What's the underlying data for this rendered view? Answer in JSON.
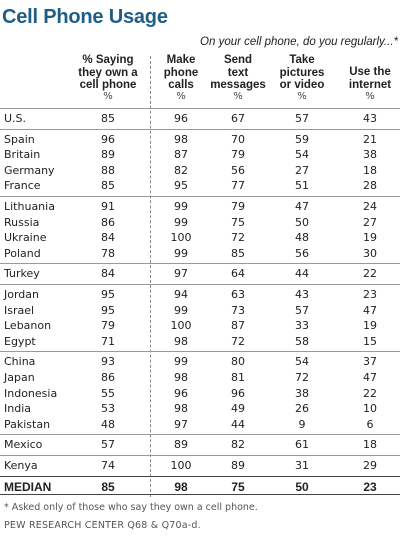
{
  "title": "Cell Phone Usage",
  "subtitle": "On your cell phone, do you regularly...*",
  "chart_data": {
    "type": "table",
    "columns": [
      {
        "lines": [
          "% Saying",
          "they own a",
          "cell phone"
        ],
        "unit": "%"
      },
      {
        "lines": [
          "Make",
          "phone",
          "calls"
        ],
        "unit": "%"
      },
      {
        "lines": [
          "Send",
          "text",
          "messages"
        ],
        "unit": "%"
      },
      {
        "lines": [
          "Take",
          "pictures",
          "or video"
        ],
        "unit": "%"
      },
      {
        "lines": [
          "Use the",
          "internet"
        ],
        "unit": "%"
      }
    ],
    "groups": [
      [
        [
          "U.S.",
          "85",
          "96",
          "67",
          "57",
          "43"
        ]
      ],
      [
        [
          "Spain",
          "96",
          "98",
          "70",
          "59",
          "21"
        ],
        [
          "Britain",
          "89",
          "87",
          "79",
          "54",
          "38"
        ],
        [
          "Germany",
          "88",
          "82",
          "56",
          "27",
          "18"
        ],
        [
          "France",
          "85",
          "95",
          "77",
          "51",
          "28"
        ]
      ],
      [
        [
          "Lithuania",
          "91",
          "99",
          "79",
          "47",
          "24"
        ],
        [
          "Russia",
          "86",
          "99",
          "75",
          "50",
          "27"
        ],
        [
          "Ukraine",
          "84",
          "100",
          "72",
          "48",
          "19"
        ],
        [
          "Poland",
          "78",
          "99",
          "85",
          "56",
          "30"
        ]
      ],
      [
        [
          "Turkey",
          "84",
          "97",
          "64",
          "44",
          "22"
        ]
      ],
      [
        [
          "Jordan",
          "95",
          "94",
          "63",
          "43",
          "23"
        ],
        [
          "Israel",
          "95",
          "99",
          "73",
          "57",
          "47"
        ],
        [
          "Lebanon",
          "79",
          "100",
          "87",
          "33",
          "19"
        ],
        [
          "Egypt",
          "71",
          "98",
          "72",
          "58",
          "15"
        ]
      ],
      [
        [
          "China",
          "93",
          "99",
          "80",
          "54",
          "37"
        ],
        [
          "Japan",
          "86",
          "98",
          "81",
          "72",
          "47"
        ],
        [
          "Indonesia",
          "55",
          "96",
          "96",
          "38",
          "22"
        ],
        [
          "India",
          "53",
          "98",
          "49",
          "26",
          "10"
        ],
        [
          "Pakistan",
          "48",
          "97",
          "44",
          "9",
          "6"
        ]
      ],
      [
        [
          "Mexico",
          "57",
          "89",
          "82",
          "61",
          "18"
        ]
      ],
      [
        [
          "Kenya",
          "74",
          "100",
          "89",
          "31",
          "29"
        ]
      ]
    ],
    "median": [
      "MEDIAN",
      "85",
      "98",
      "75",
      "50",
      "23"
    ]
  },
  "footnote": "* Asked only of those who say they own a cell phone.",
  "source": "PEW RESEARCH CENTER Q68 & Q70a-d."
}
